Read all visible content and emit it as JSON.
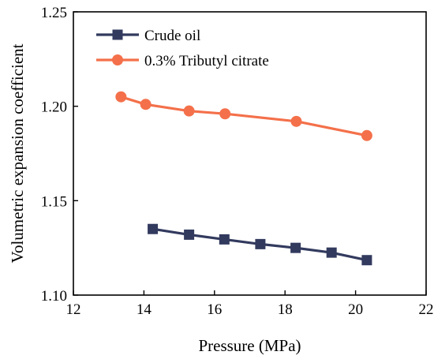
{
  "chart_data": {
    "type": "line",
    "xlabel": "Pressure (MPa)",
    "ylabel": "Volumetric expansion coefficient",
    "xlim": [
      12,
      22
    ],
    "ylim": [
      1.1,
      1.25
    ],
    "xticks": [
      12,
      14,
      16,
      18,
      20,
      22
    ],
    "yticks": [
      1.1,
      1.15,
      1.2,
      1.25
    ],
    "ytick_labels": [
      "1.10",
      "1.15",
      "1.20",
      "1.25"
    ],
    "legend_position": "top-left",
    "grid": false,
    "series": [
      {
        "name": "Crude oil",
        "marker": "square",
        "color": "#323a5e",
        "x": [
          14.25,
          15.28,
          16.28,
          17.3,
          18.3,
          19.32,
          20.32
        ],
        "y": [
          1.135,
          1.132,
          1.1295,
          1.127,
          1.125,
          1.1225,
          1.1185
        ]
      },
      {
        "name": "0.3% Tributyl citrate",
        "marker": "circle",
        "color": "#f4704a",
        "x": [
          13.35,
          14.05,
          15.28,
          16.3,
          18.32,
          20.32
        ],
        "y": [
          1.205,
          1.201,
          1.1975,
          1.196,
          1.192,
          1.1845
        ]
      }
    ]
  }
}
